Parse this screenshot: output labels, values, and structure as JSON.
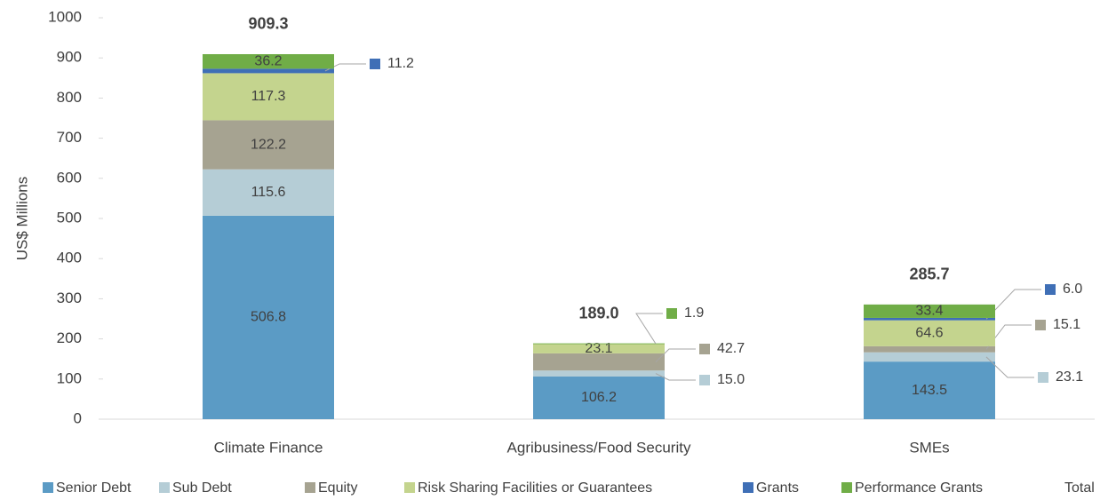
{
  "chart_data": {
    "type": "stacked_bar",
    "y_label": "US$ Millions",
    "categories": [
      "Climate Finance",
      "Agribusiness/Food Security",
      "SMEs"
    ],
    "ylim": [
      0,
      1000
    ],
    "yticks": [
      0,
      100,
      200,
      300,
      400,
      500,
      600,
      700,
      800,
      900,
      1000
    ],
    "series": [
      {
        "name": "Senior Debt",
        "color": "#5b9bc5",
        "values": [
          506.8,
          106.2,
          143.5
        ],
        "value_labels": [
          "506.8",
          "106.2",
          "143.5"
        ]
      },
      {
        "name": "Sub Debt",
        "color": "#b5cdd6",
        "values": [
          115.6,
          15.0,
          23.1
        ],
        "value_labels": [
          "115.6",
          "15.0",
          "23.1"
        ]
      },
      {
        "name": "Equity",
        "color": "#a6a391",
        "values": [
          122.2,
          42.7,
          15.1
        ],
        "value_labels": [
          "122.2",
          "42.7",
          "15.1"
        ]
      },
      {
        "name": "Risk Sharing Facilities or Guarantees",
        "color": "#c4d48e",
        "values": [
          117.3,
          23.1,
          64.6
        ],
        "value_labels": [
          "117.3",
          "23.1",
          "64.6"
        ]
      },
      {
        "name": "Grants",
        "color": "#3f6fb6",
        "values": [
          11.2,
          null,
          6.0
        ],
        "value_labels": [
          "11.2",
          null,
          "6.0"
        ]
      },
      {
        "name": "Performance Grants",
        "color": "#70ad47",
        "values": [
          36.2,
          1.9,
          33.4
        ],
        "value_labels": [
          "36.2",
          "1.9",
          "33.4"
        ]
      }
    ],
    "total": {
      "name": "Total",
      "values": [
        909.3,
        189.0,
        285.7
      ],
      "value_labels": [
        "909.3",
        "189.0",
        "285.7"
      ]
    },
    "legend": "bottom"
  }
}
